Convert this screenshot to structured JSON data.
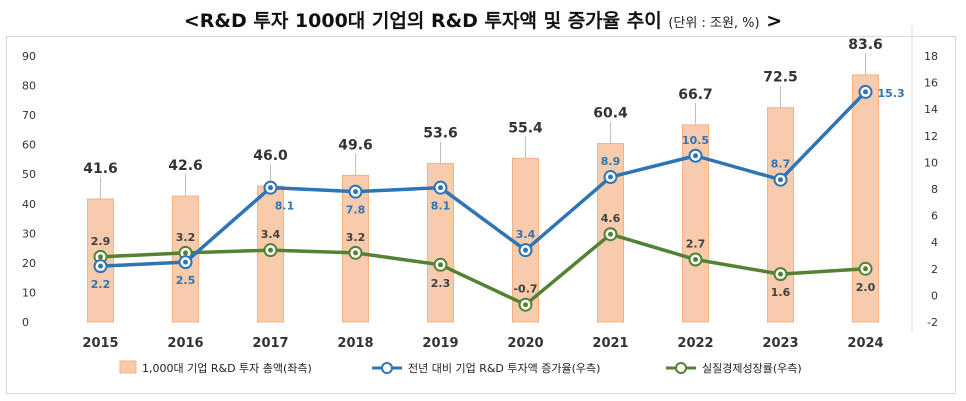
{
  "title": {
    "main": "<R&D 투자 1000대 기업의 R&D 투자액 및 증가율 추이",
    "unit": "(단위 : 조원, %)",
    "end": ">"
  },
  "chart_data": {
    "type": "bar",
    "categories": [
      "2015",
      "2016",
      "2017",
      "2018",
      "2019",
      "2020",
      "2021",
      "2022",
      "2023",
      "2024"
    ],
    "left_axis": {
      "min": 0,
      "max": 90,
      "step": 10,
      "ticks": [
        "0",
        "10",
        "20",
        "30",
        "40",
        "50",
        "60",
        "70",
        "80",
        "90"
      ]
    },
    "right_axis": {
      "min": -2,
      "max": 18,
      "step": 2,
      "ticks": [
        "-2",
        "0",
        "2",
        "4",
        "6",
        "8",
        "10",
        "12",
        "14",
        "16",
        "18"
      ]
    },
    "series": [
      {
        "name": "1,000대 기업 R&D 투자 총액(좌측)",
        "type": "bar",
        "axis": "left",
        "values": [
          41.6,
          42.6,
          46.0,
          49.6,
          53.6,
          55.4,
          60.4,
          66.7,
          72.5,
          83.6
        ],
        "labels": [
          "41.6",
          "42.6",
          "46.0",
          "49.6",
          "53.6",
          "55.4",
          "60.4",
          "66.7",
          "72.5",
          "83.6"
        ],
        "color": "#f8cbad",
        "border": "#f4b183"
      },
      {
        "name": "전년 대비 기업 R&D 투자액 증가율(우측)",
        "type": "line",
        "axis": "right",
        "values": [
          2.2,
          2.5,
          8.1,
          7.8,
          8.1,
          3.4,
          8.9,
          10.5,
          8.7,
          15.3
        ],
        "labels": [
          "2.2",
          "2.5",
          "8.1",
          "7.8",
          "8.1",
          "3.4",
          "8.9",
          "10.5",
          "8.7",
          "15.3"
        ],
        "label_pos": [
          "below",
          "below",
          "below-right",
          "below",
          "below",
          "above",
          "above",
          "above",
          "above",
          "right"
        ],
        "color": "#2e75b6"
      },
      {
        "name": "실질경제성장률(우측)",
        "type": "line",
        "axis": "right",
        "values": [
          2.9,
          3.2,
          3.4,
          3.2,
          2.3,
          -0.7,
          4.6,
          2.7,
          1.6,
          2.0
        ],
        "labels": [
          "2.9",
          "3.2",
          "3.4",
          "3.2",
          "2.3",
          "-0.7",
          "4.6",
          "2.7",
          "1.6",
          "2.0"
        ],
        "label_pos": [
          "above",
          "above",
          "above",
          "above",
          "below",
          "above",
          "above",
          "above",
          "below",
          "below"
        ],
        "color": "#548235"
      }
    ]
  }
}
